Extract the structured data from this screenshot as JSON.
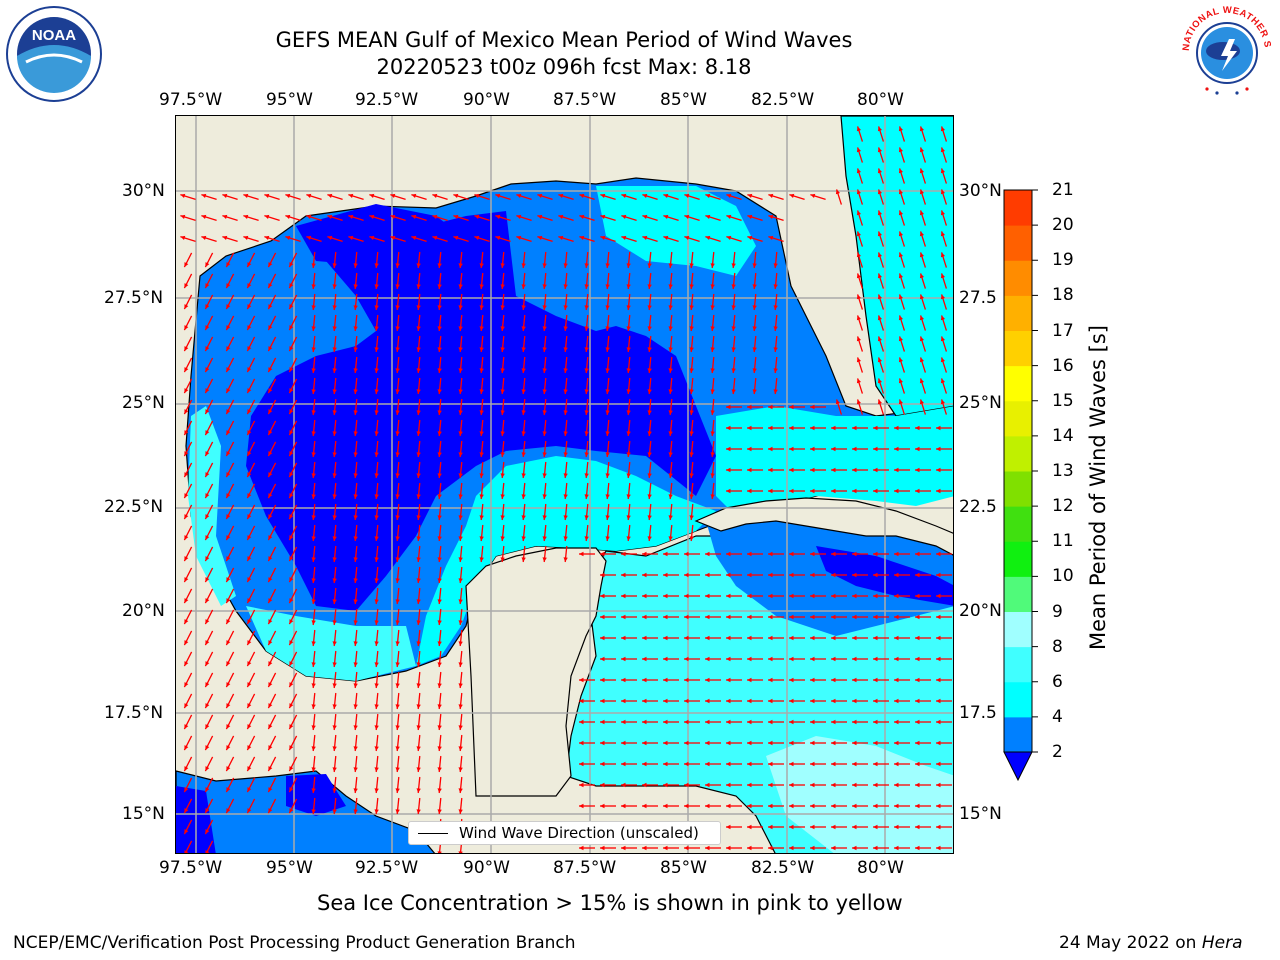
{
  "title": {
    "line1": "GEFS MEAN Gulf of Mexico Mean Period of Wind Waves",
    "line2": "20220523 t00z 096h fcst   Max: 8.18"
  },
  "map": {
    "lon_ticks": [
      "97.5°W",
      "95°W",
      "92.5°W",
      "90°W",
      "87.5°W",
      "85°W",
      "82.5°W",
      "80°W"
    ],
    "lat_ticks_left": [
      "30°N",
      "27.5°N",
      "25°N",
      "22.5°N",
      "20°N",
      "17.5°N",
      "15°N"
    ],
    "lat_ticks_right": [
      "30°N",
      "27.5",
      "25°N",
      "22.5",
      "20°N",
      "17.5",
      "15°N"
    ],
    "land_color": "#eeecdc",
    "arrow_color": "#ff0000"
  },
  "legend": {
    "label": "Wind Wave Direction (unscaled)"
  },
  "colorbar": {
    "label": "Mean Period of Wind Waves [s]",
    "ticks": [
      "2",
      "4",
      "6",
      "8",
      "9",
      "10",
      "11",
      "12",
      "13",
      "14",
      "15",
      "16",
      "17",
      "18",
      "19",
      "20",
      "21"
    ],
    "colors": [
      "#0000ff",
      "#0080ff",
      "#00ffff",
      "#40ffff",
      "#a0ffff",
      "#50fa7a",
      "#10f010",
      "#40e010",
      "#80e000",
      "#c0f000",
      "#e8f000",
      "#ffff00",
      "#ffd000",
      "#ffb000",
      "#ff8c00",
      "#ff6000",
      "#ff3c00",
      "#ff0000"
    ]
  },
  "caption": "Sea Ice Concentration > 15% is shown in pink to yellow",
  "footer": {
    "left": "NCEP/EMC/Verification Post Processing Product Generation Branch",
    "right_prefix": "24 May 2022 on",
    "right_host": "Hera"
  },
  "logos": {
    "noaa": "NOAA",
    "nws_text": "NATIONAL WEATHER SERVICE"
  }
}
